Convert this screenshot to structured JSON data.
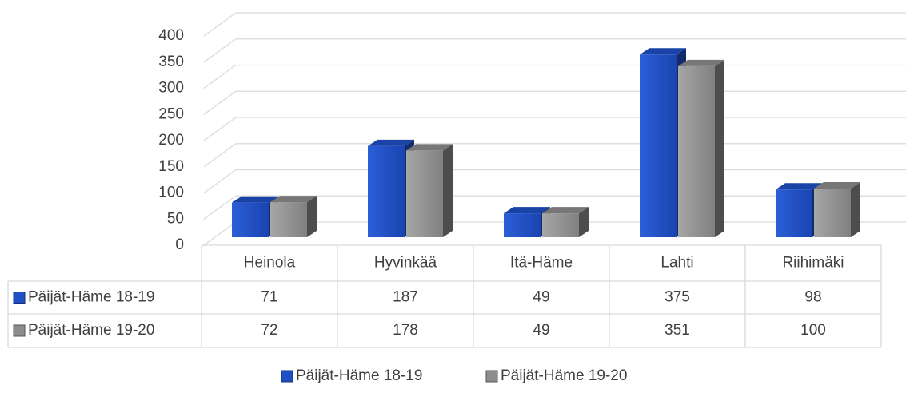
{
  "chart_data": {
    "type": "bar3d",
    "categories": [
      "Heinola",
      "Hyvinkää",
      "Itä-Häme",
      "Lahti",
      "Riihimäki"
    ],
    "series": [
      {
        "name": "Päijät-Häme 18-19",
        "color": "#1f4fc4",
        "values": [
          71,
          187,
          49,
          375,
          98
        ]
      },
      {
        "name": "Päijät-Häme 19-20",
        "color": "#8c8c8c",
        "values": [
          72,
          178,
          49,
          351,
          100
        ]
      }
    ],
    "ylim": [
      0,
      400
    ],
    "yticks": [
      0,
      50,
      100,
      150,
      200,
      250,
      300,
      350,
      400
    ],
    "grid": true,
    "legend": "bottom",
    "data_table": true
  }
}
